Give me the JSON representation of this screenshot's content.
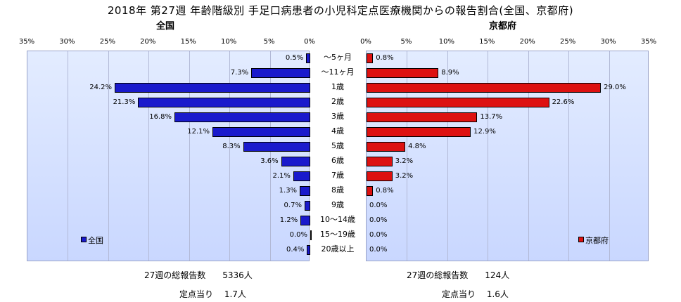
{
  "title": "2018年 第27週 年齢階級別 手足口病患者の小児科定点医療機関からの報告割合(全国、京都府)",
  "chart_data": {
    "type": "bar",
    "categories": [
      "～5ヶ月",
      "～11ヶ月",
      "1歳",
      "2歳",
      "3歳",
      "4歳",
      "5歳",
      "6歳",
      "7歳",
      "8歳",
      "9歳",
      "10～14歳",
      "15～19歳",
      "20歳以上"
    ],
    "series": [
      {
        "name": "全国",
        "values": [
          0.5,
          7.3,
          24.2,
          21.3,
          16.8,
          12.1,
          8.3,
          3.6,
          2.1,
          1.3,
          0.7,
          1.2,
          0.0,
          0.4
        ],
        "labels": [
          "0.5%",
          "7.3%",
          "24.2%",
          "21.3%",
          "16.8%",
          "12.1%",
          "8.3%",
          "3.6%",
          "2.1%",
          "1.3%",
          "0.7%",
          "1.2%",
          "0.0%",
          "0.4%"
        ]
      },
      {
        "name": "京都府",
        "values": [
          0.8,
          8.9,
          29.0,
          22.6,
          13.7,
          12.9,
          4.8,
          3.2,
          3.2,
          0.8,
          0.0,
          0.0,
          0.0,
          0.0
        ],
        "labels": [
          "0.8%",
          "8.9%",
          "29.0%",
          "22.6%",
          "13.7%",
          "12.9%",
          "4.8%",
          "3.2%",
          "3.2%",
          "0.8%",
          "0.0%",
          "0.0%",
          "0.0%",
          "0.0%"
        ]
      }
    ],
    "xlim": [
      0,
      35
    ],
    "tick_labels": [
      "0%",
      "5%",
      "10%",
      "15%",
      "20%",
      "25%",
      "30%",
      "35%"
    ],
    "left_title": "全国",
    "right_title": "京都府"
  },
  "colors": {
    "national": "#1a1acc",
    "kyoto": "#dd1111"
  },
  "footer": {
    "national_reports": "27週の総報告数　　5336人",
    "national_per_site": "定点当り　 1.7人",
    "kyoto_reports": "27週の総報告数　　124人",
    "kyoto_per_site": "定点当り　 1.6人"
  }
}
